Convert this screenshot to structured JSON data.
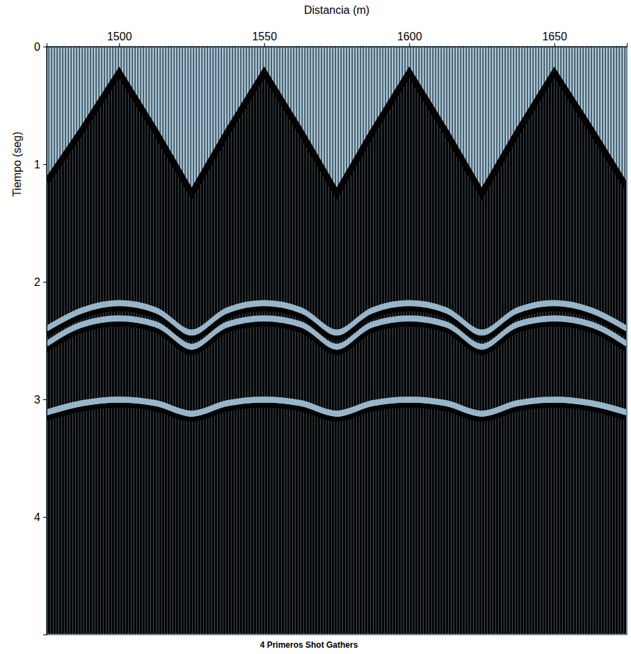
{
  "chart_data": {
    "type": "seismic",
    "title": "4 Primeros Shot Gathers",
    "x_label": "Distancia (m)",
    "y_label": "Tiempo (seg)",
    "x": [
      1475,
      1487.5,
      1500,
      1512.5,
      1525,
      1537.5,
      1550,
      1562.5,
      1575,
      1587.5,
      1600,
      1612.5,
      1625,
      1637.5,
      1650,
      1662.5,
      1675
    ],
    "series": [
      {
        "type": "area",
        "color": "#000000",
        "values": [
          1.15,
          0.7,
          0.22,
          0.72,
          1.25,
          0.72,
          0.22,
          0.72,
          1.25,
          0.72,
          0.22,
          0.72,
          1.25,
          0.72,
          0.22,
          0.7,
          1.2
        ]
      },
      {
        "type": "line",
        "color": "#000000",
        "values": [
          2.45,
          2.29,
          2.23,
          2.29,
          2.48,
          2.29,
          2.23,
          2.29,
          2.48,
          2.29,
          2.23,
          2.29,
          2.48,
          2.29,
          2.23,
          2.29,
          2.45
        ]
      },
      {
        "type": "line",
        "color": "#000000",
        "values": [
          2.58,
          2.41,
          2.36,
          2.41,
          2.6,
          2.41,
          2.36,
          2.41,
          2.6,
          2.41,
          2.36,
          2.41,
          2.6,
          2.41,
          2.36,
          2.41,
          2.58
        ]
      },
      {
        "type": "line",
        "color": "#000000",
        "values": [
          3.16,
          3.08,
          3.05,
          3.08,
          3.17,
          3.08,
          3.05,
          3.08,
          3.17,
          3.08,
          3.05,
          3.08,
          3.17,
          3.08,
          3.05,
          3.08,
          3.16
        ]
      }
    ],
    "xlim": [
      1475,
      1675
    ],
    "ylim": [
      0,
      5
    ],
    "xticks": [
      1500,
      1550,
      1600,
      1650
    ],
    "yticks": [
      0,
      1,
      2,
      3,
      4
    ],
    "color": "#a6c8de"
  }
}
